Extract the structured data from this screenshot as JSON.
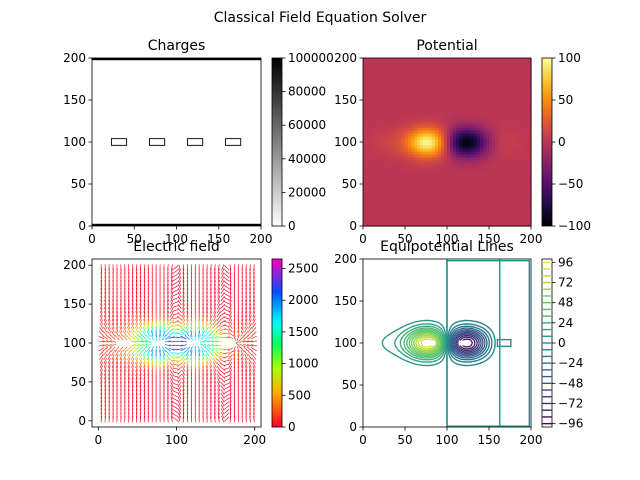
{
  "figure": {
    "title": "Classical Field Equation Solver"
  },
  "chart_data": [
    {
      "type": "heatmap",
      "title": "Charges",
      "xlim": [
        0,
        200
      ],
      "ylim": [
        0,
        200
      ],
      "xticks": [
        0,
        50,
        100,
        150,
        200
      ],
      "yticks": [
        0,
        50,
        100,
        150,
        200
      ],
      "colormap": "gray_r",
      "colorbar": {
        "min": 0,
        "max": 100000,
        "ticks": [
          0,
          20000,
          40000,
          60000,
          80000,
          100000
        ]
      },
      "charges": [
        {
          "x0": 23,
          "x1": 41,
          "y0": 96,
          "y1": 104
        },
        {
          "x0": 68,
          "x1": 86,
          "y0": 96,
          "y1": 104
        },
        {
          "x0": 113,
          "x1": 131,
          "y0": 96,
          "y1": 104
        },
        {
          "x0": 158,
          "x1": 176,
          "y0": 96,
          "y1": 104
        }
      ]
    },
    {
      "type": "heatmap",
      "title": "Potential",
      "xlim": [
        0,
        200
      ],
      "ylim": [
        0,
        200
      ],
      "xticks": [
        0,
        50,
        100,
        150,
        200
      ],
      "yticks": [
        0,
        50,
        100,
        150,
        200
      ],
      "colormap": "inferno",
      "colorbar": {
        "min": -100,
        "max": 100,
        "ticks": [
          -100,
          -50,
          0,
          50,
          100
        ]
      },
      "sources": [
        {
          "x": 78,
          "y": 100,
          "value": 100
        },
        {
          "x": 122,
          "y": 100,
          "value": -100
        },
        {
          "x": 32,
          "y": 100,
          "value": 8
        },
        {
          "x": 168,
          "y": 100,
          "value": 8
        }
      ]
    },
    {
      "type": "quiver",
      "title": "Electric field",
      "xlim": [
        -8,
        208
      ],
      "ylim": [
        -8,
        208
      ],
      "xticks": [
        0,
        100,
        200
      ],
      "yticks": [
        0,
        50,
        100,
        150,
        200
      ],
      "colormap": "gist_rainbow",
      "colorbar": {
        "min": 0,
        "max": 2650,
        "ticks": [
          0,
          500,
          1000,
          1500,
          2000,
          2500
        ]
      }
    },
    {
      "type": "contour",
      "title": "Equipotential Lines",
      "xlim": [
        0,
        200
      ],
      "ylim": [
        0,
        200
      ],
      "xticks": [
        0,
        50,
        100,
        150,
        200
      ],
      "yticks": [
        0,
        50,
        100,
        150,
        200
      ],
      "colormap": "viridis",
      "levels": [
        -96,
        -88,
        -80,
        -72,
        -64,
        -56,
        -48,
        -40,
        -32,
        -24,
        -16,
        -8,
        0,
        8,
        16,
        24,
        32,
        40,
        48,
        56,
        64,
        72,
        80,
        88,
        96
      ],
      "colorbar": {
        "min": -100,
        "max": 100,
        "ticks": [
          -96,
          -72,
          -48,
          -24,
          0,
          24,
          48,
          72,
          96
        ]
      }
    }
  ]
}
